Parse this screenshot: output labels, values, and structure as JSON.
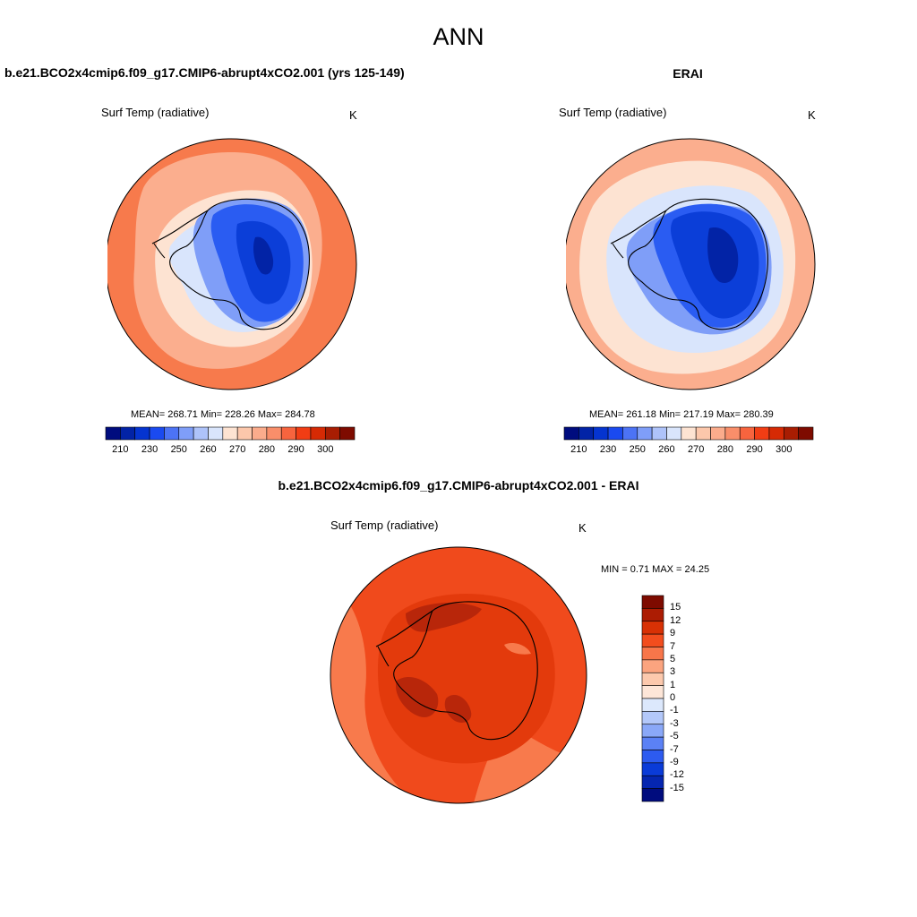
{
  "main_title": "ANN",
  "panels": {
    "case": {
      "title": "b.e21.BCO2x4cmip6.f09_g17.CMIP6-abrupt4xCO2.001 (yrs 125-149)",
      "variable": "Surf Temp (radiative)",
      "units": "K",
      "stats": "MEAN= 268.71  Min= 228.26  Max= 284.78"
    },
    "reference": {
      "title": "ERAI",
      "variable": "Surf Temp (radiative)",
      "units": "K",
      "stats": "MEAN= 261.18  Min= 217.19  Max= 280.39"
    },
    "difference": {
      "title": "b.e21.BCO2x4cmip6.f09_g17.CMIP6-abrupt4xCO2.001 - ERAI",
      "variable": "Surf Temp (radiative)",
      "units": "K",
      "stats": "MIN =   0.71 MAX =  24.25"
    }
  },
  "colorbar_abs": {
    "labels": [
      "210",
      "230",
      "250",
      "260",
      "270",
      "280",
      "290",
      "300"
    ],
    "colors": [
      "#000c7e",
      "#0223a6",
      "#0534d0",
      "#1a4af0",
      "#4c73f5",
      "#7f9ef8",
      "#aec3fa",
      "#d9e5fc",
      "#fde3d2",
      "#fcc7ab",
      "#fbac8c",
      "#f98e6a",
      "#f7643e",
      "#f13d14",
      "#d62a04",
      "#a81d02",
      "#7e0b00"
    ]
  },
  "colorbar_diff": {
    "labels": [
      "15",
      "12",
      "9",
      "7",
      "5",
      "3",
      "1",
      "0",
      "-1",
      "-3",
      "-5",
      "-7",
      "-9",
      "-12",
      "-15"
    ],
    "colors": [
      "#7e0b00",
      "#ac1c03",
      "#d83105",
      "#f24d1e",
      "#f8764a",
      "#fba47f",
      "#fcc9ad",
      "#fde6d8",
      "#dce8fc",
      "#b3c8fa",
      "#8aa8f8",
      "#5b81f5",
      "#2d5bf0",
      "#0a3bd8",
      "#0526b0",
      "#000c7e"
    ]
  },
  "map_colors": {
    "abs_warm": "#f77a4c",
    "abs_mid": "#fbae8e",
    "abs_light": "#fde3d2",
    "abs_pale_blue": "#d9e5fc",
    "abs_blue1": "#7f9ef8",
    "abs_blue2": "#2a5cf2",
    "abs_blue3": "#0b3ed8",
    "abs_blue4": "#0223a6",
    "diff_base": "#f04a1c",
    "diff_mid": "#e33a0c",
    "diff_dark": "#b8260a",
    "diff_light": "#f87a4c"
  }
}
